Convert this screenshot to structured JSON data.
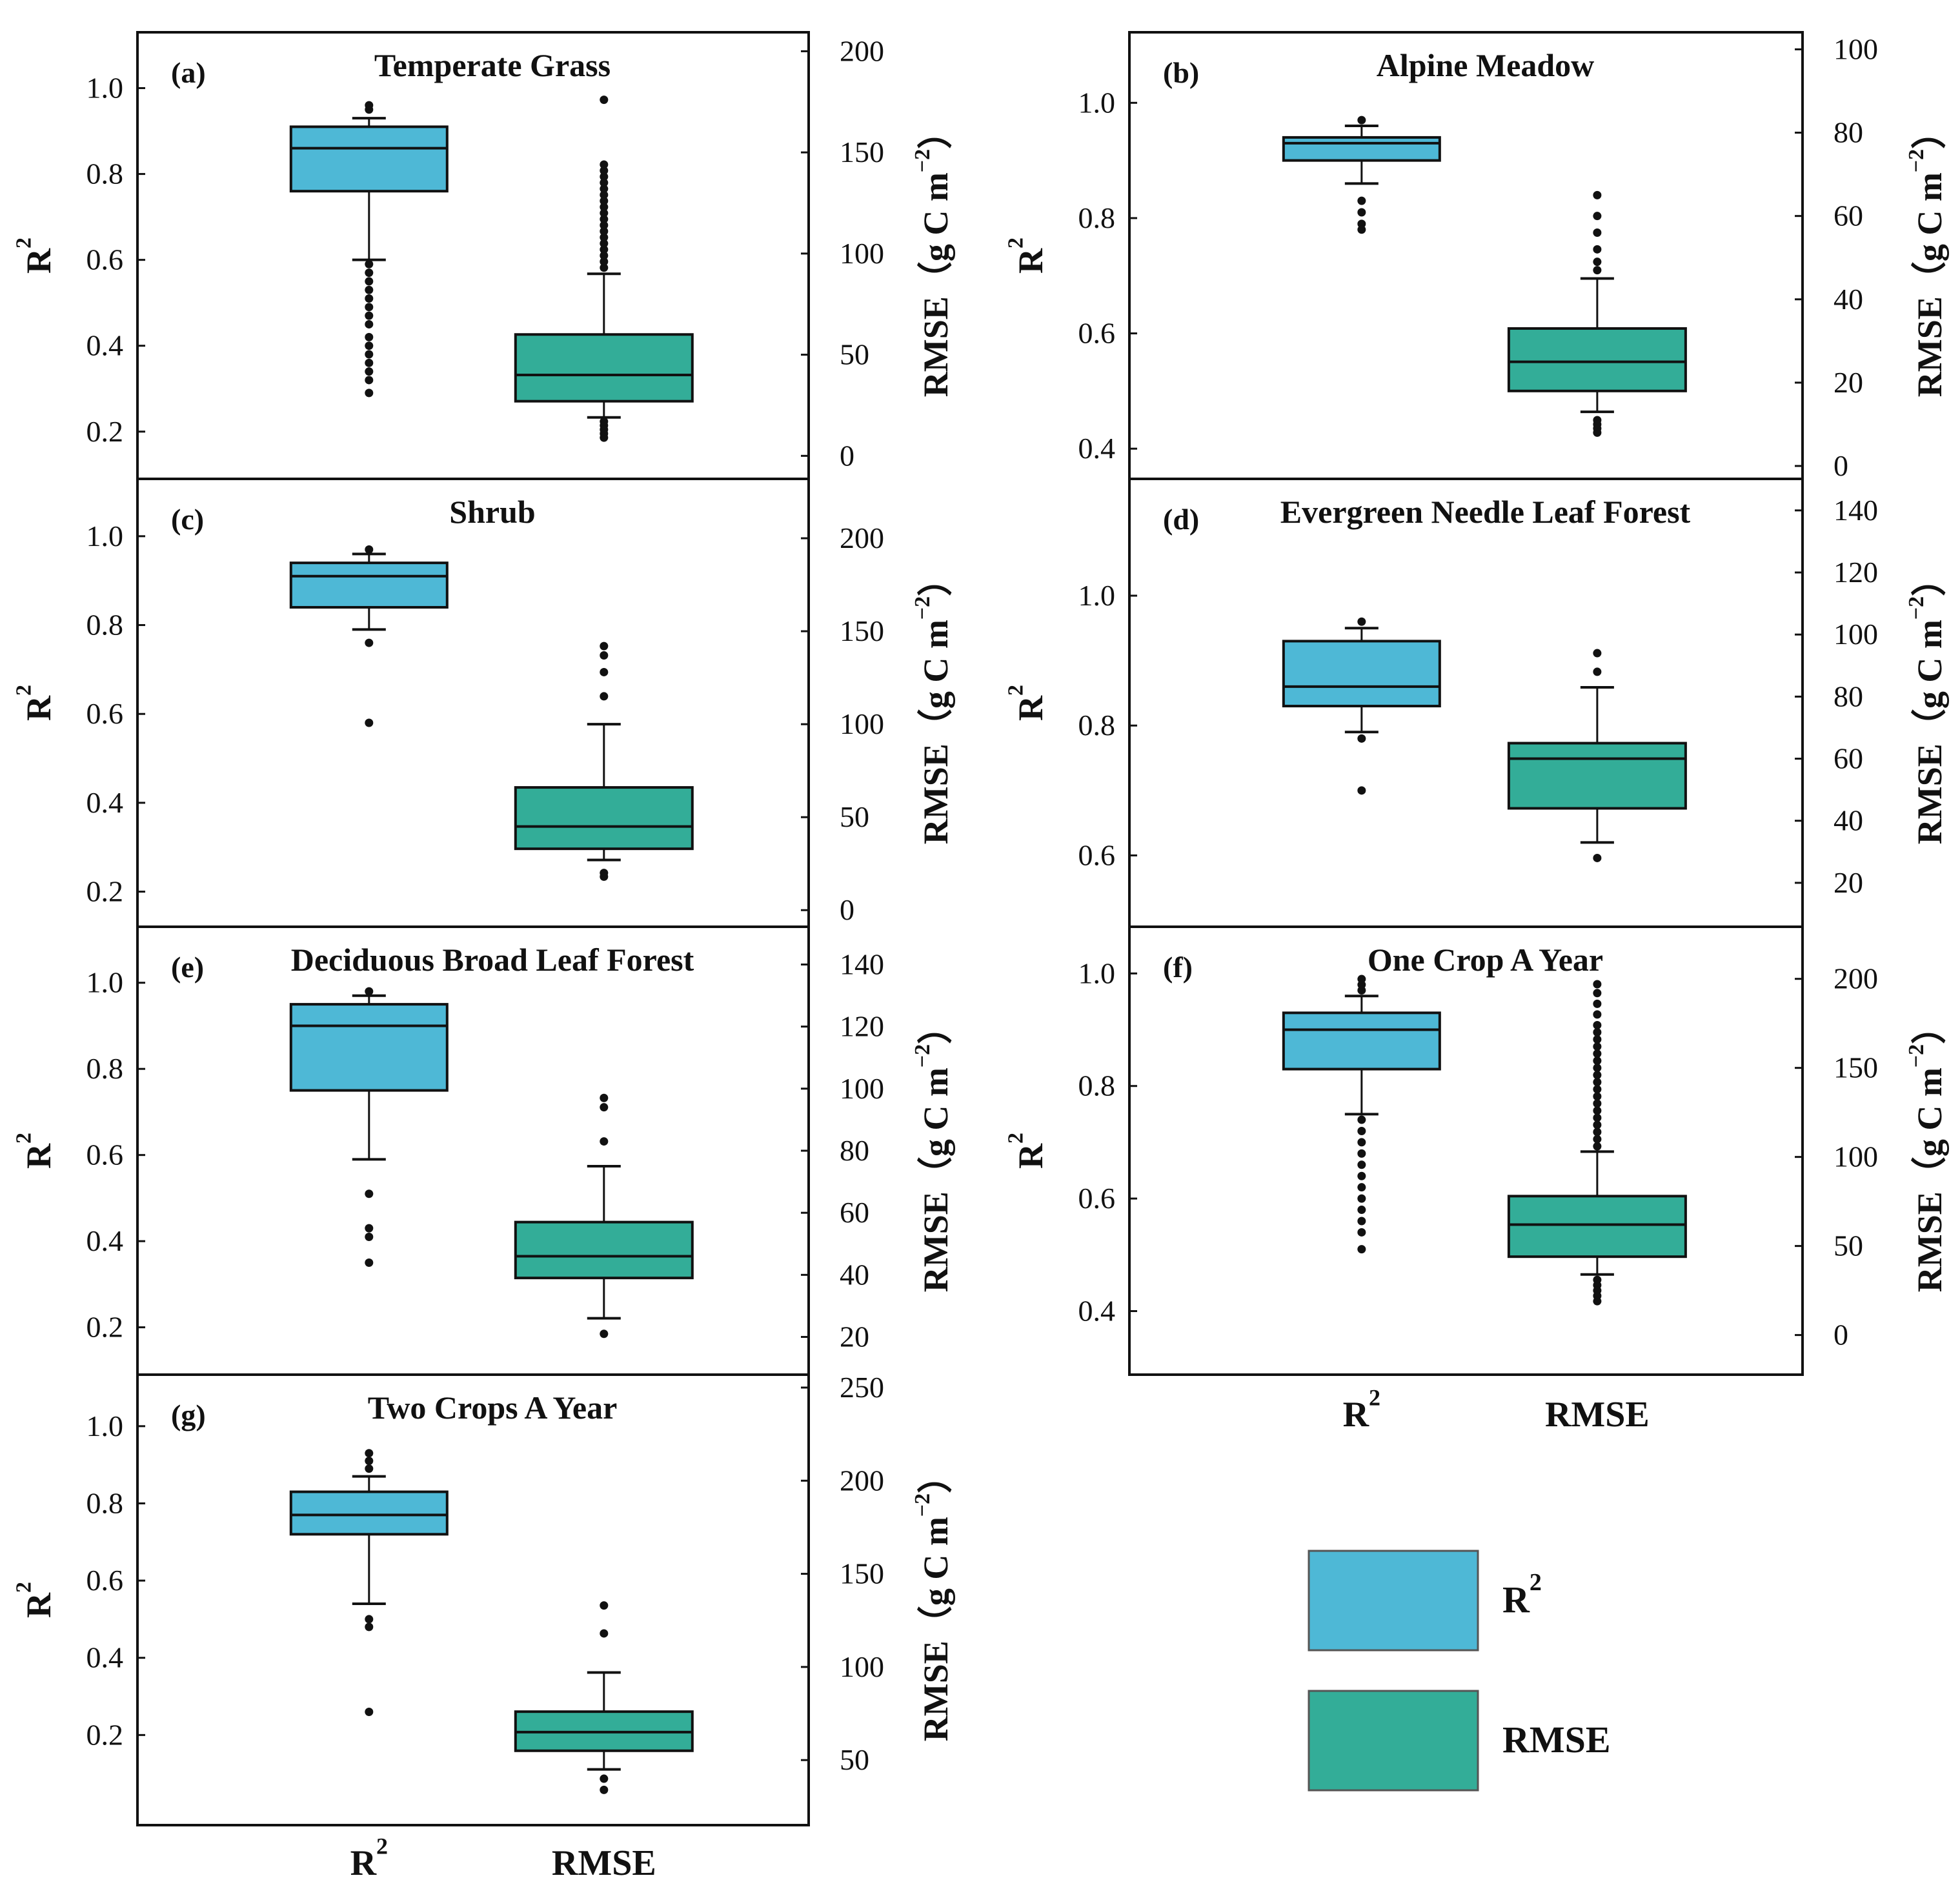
{
  "colors": {
    "r2": "#4eb8d6",
    "rmse": "#33ad98",
    "stroke": "#111111"
  },
  "labels": {
    "left_axis": "R",
    "left_axis_sup": "2",
    "right_axis": "RMSE（g C m",
    "right_axis_sup": "−2",
    "right_axis_close": "）",
    "cat_r2": "R",
    "cat_r2_sup": "2",
    "cat_rmse": "RMSE"
  },
  "legend": {
    "items": [
      {
        "key": "r2",
        "label": "R",
        "sup": "2"
      },
      {
        "key": "rmse",
        "label": "RMSE",
        "sup": ""
      }
    ]
  },
  "chart_data": [
    {
      "type": "boxplot",
      "id": "a",
      "tag": "(a)",
      "title": "Temperate Grass",
      "y_left": {
        "range": [
          0.12,
          1.1
        ],
        "ticks": [
          0.2,
          0.4,
          0.6,
          0.8,
          1.0
        ],
        "tick_labels": [
          "0.2",
          "0.4",
          "0.6",
          "0.8",
          "1.0"
        ]
      },
      "y_right": {
        "range": [
          -5,
          203
        ],
        "ticks": [
          0,
          50,
          100,
          150,
          200
        ],
        "tick_labels": [
          "0",
          "50",
          "100",
          "150",
          "200"
        ]
      },
      "r2": {
        "q1": 0.76,
        "median": 0.86,
        "q3": 0.91,
        "whisker_low": 0.6,
        "whisker_high": 0.93,
        "outliers": [
          0.95,
          0.96,
          0.59,
          0.57,
          0.55,
          0.53,
          0.51,
          0.49,
          0.47,
          0.45,
          0.42,
          0.4,
          0.38,
          0.36,
          0.34,
          0.32,
          0.29
        ]
      },
      "rmse": {
        "q1": 27,
        "median": 40,
        "q3": 60,
        "whisker_low": 19,
        "whisker_high": 90,
        "outliers": [
          93,
          96,
          99,
          102,
          105,
          108,
          111,
          114,
          117,
          120,
          123,
          126,
          129,
          132,
          135,
          138,
          141,
          144,
          176,
          17,
          15,
          13,
          11,
          9
        ]
      }
    },
    {
      "type": "boxplot",
      "id": "b",
      "tag": "(b)",
      "title": "Alpine Meadow",
      "y_left": {
        "range": [
          0.37,
          1.1
        ],
        "ticks": [
          0.4,
          0.6,
          0.8,
          1.0
        ],
        "tick_labels": [
          "0.4",
          "0.6",
          "0.8",
          "1.0"
        ]
      },
      "y_right": {
        "range": [
          0,
          101
        ],
        "ticks": [
          0,
          20,
          40,
          60,
          80,
          100
        ],
        "tick_labels": [
          "0",
          "20",
          "40",
          "60",
          "80",
          "100"
        ]
      },
      "r2": {
        "q1": 0.9,
        "median": 0.93,
        "q3": 0.94,
        "whisker_low": 0.86,
        "whisker_high": 0.96,
        "outliers": [
          0.97,
          0.83,
          0.81,
          0.79,
          0.78
        ]
      },
      "rmse": {
        "q1": 18,
        "median": 25,
        "q3": 33,
        "whisker_low": 13,
        "whisker_high": 45,
        "outliers": [
          47,
          49,
          52,
          56,
          60,
          65,
          11,
          10,
          9,
          8
        ]
      }
    },
    {
      "type": "boxplot",
      "id": "c",
      "tag": "(c)",
      "title": "Shrub",
      "y_left": {
        "range": [
          0.15,
          1.1
        ],
        "ticks": [
          0.2,
          0.4,
          0.6,
          0.8,
          1.0
        ],
        "tick_labels": [
          "0.2",
          "0.4",
          "0.6",
          "0.8",
          "1.0"
        ]
      },
      "y_right": {
        "range": [
          -2,
          225
        ],
        "ticks": [
          0,
          50,
          100,
          150,
          200
        ],
        "tick_labels": [
          "0",
          "50",
          "100",
          "150",
          "200"
        ]
      },
      "r2": {
        "q1": 0.84,
        "median": 0.91,
        "q3": 0.94,
        "whisker_low": 0.79,
        "whisker_high": 0.96,
        "outliers": [
          0.97,
          0.76,
          0.58
        ]
      },
      "rmse": {
        "q1": 33,
        "median": 45,
        "q3": 66,
        "whisker_low": 27,
        "whisker_high": 100,
        "outliers": [
          115,
          128,
          137,
          142,
          20,
          18
        ]
      }
    },
    {
      "type": "boxplot",
      "id": "d",
      "tag": "(d)",
      "title": "Evergreen Needle Leaf Forest",
      "y_left": {
        "range": [
          0.51,
          1.16
        ],
        "ticks": [
          0.6,
          0.8,
          1.0
        ],
        "tick_labels": [
          "0.6",
          "0.8",
          "1.0"
        ]
      },
      "y_right": {
        "range": [
          10,
          146
        ],
        "ticks": [
          20,
          40,
          60,
          80,
          100,
          120,
          140
        ],
        "tick_labels": [
          "20",
          "40",
          "60",
          "80",
          "100",
          "120",
          "140"
        ]
      },
      "r2": {
        "q1": 0.83,
        "median": 0.86,
        "q3": 0.93,
        "whisker_low": 0.79,
        "whisker_high": 0.95,
        "outliers": [
          0.96,
          0.78,
          0.7
        ]
      },
      "rmse": {
        "q1": 44,
        "median": 60,
        "q3": 65,
        "whisker_low": 33,
        "whisker_high": 83,
        "outliers": [
          88,
          94,
          28
        ]
      }
    },
    {
      "type": "boxplot",
      "id": "e",
      "tag": "(e)",
      "title": "Deciduous Broad Leaf Forest",
      "y_left": {
        "range": [
          0.12,
          1.1
        ],
        "ticks": [
          0.2,
          0.4,
          0.6,
          0.8,
          1.0
        ],
        "tick_labels": [
          "0.2",
          "0.4",
          "0.6",
          "0.8",
          "1.0"
        ]
      },
      "y_right": {
        "range": [
          12,
          148
        ],
        "ticks": [
          20,
          40,
          60,
          80,
          100,
          120,
          140
        ],
        "tick_labels": [
          "20",
          "40",
          "60",
          "80",
          "100",
          "120",
          "140"
        ]
      },
      "r2": {
        "q1": 0.75,
        "median": 0.9,
        "q3": 0.95,
        "whisker_low": 0.59,
        "whisker_high": 0.97,
        "outliers": [
          0.98,
          0.51,
          0.43,
          0.41,
          0.35
        ]
      },
      "rmse": {
        "q1": 39,
        "median": 46,
        "q3": 57,
        "whisker_low": 26,
        "whisker_high": 75,
        "outliers": [
          83,
          94,
          97,
          21
        ]
      }
    },
    {
      "type": "boxplot",
      "id": "f",
      "tag": "(f)",
      "title": "One Crop A Year",
      "y_left": {
        "range": [
          0.31,
          1.06
        ],
        "ticks": [
          0.4,
          0.6,
          0.8,
          1.0
        ],
        "tick_labels": [
          "0.4",
          "0.6",
          "0.8",
          "1.0"
        ]
      },
      "y_right": {
        "range": [
          -15,
          222
        ],
        "ticks": [
          0,
          50,
          100,
          150,
          200
        ],
        "tick_labels": [
          "0",
          "50",
          "100",
          "150",
          "200"
        ]
      },
      "r2": {
        "q1": 0.83,
        "median": 0.9,
        "q3": 0.93,
        "whisker_low": 0.75,
        "whisker_high": 0.96,
        "outliers": [
          0.97,
          0.98,
          0.99,
          0.74,
          0.72,
          0.7,
          0.68,
          0.66,
          0.64,
          0.62,
          0.6,
          0.58,
          0.56,
          0.54,
          0.51
        ]
      },
      "rmse": {
        "q1": 44,
        "median": 62,
        "q3": 78,
        "whisker_low": 34,
        "whisker_high": 103,
        "outliers": [
          106,
          110,
          114,
          118,
          122,
          126,
          130,
          134,
          138,
          142,
          146,
          150,
          154,
          158,
          162,
          166,
          170,
          174,
          180,
          186,
          192,
          197,
          31,
          28,
          25,
          22,
          19
        ]
      }
    },
    {
      "type": "boxplot",
      "id": "g",
      "tag": "(g)",
      "title": "Two Crops A Year",
      "y_left": {
        "range": [
          0.0,
          1.1
        ],
        "ticks": [
          0.2,
          0.4,
          0.6,
          0.8,
          1.0
        ],
        "tick_labels": [
          "0.2",
          "0.4",
          "0.6",
          "0.8",
          "1.0"
        ]
      },
      "y_right": {
        "range": [
          22,
          250
        ],
        "ticks": [
          50,
          100,
          150,
          200,
          250
        ],
        "tick_labels": [
          "50",
          "100",
          "150",
          "200",
          "250"
        ]
      },
      "r2": {
        "q1": 0.72,
        "median": 0.77,
        "q3": 0.83,
        "whisker_low": 0.54,
        "whisker_high": 0.87,
        "outliers": [
          0.89,
          0.91,
          0.93,
          0.5,
          0.48,
          0.26
        ]
      },
      "rmse": {
        "q1": 55,
        "median": 65,
        "q3": 76,
        "whisker_low": 45,
        "whisker_high": 97,
        "outliers": [
          118,
          133,
          40,
          34
        ]
      }
    }
  ]
}
